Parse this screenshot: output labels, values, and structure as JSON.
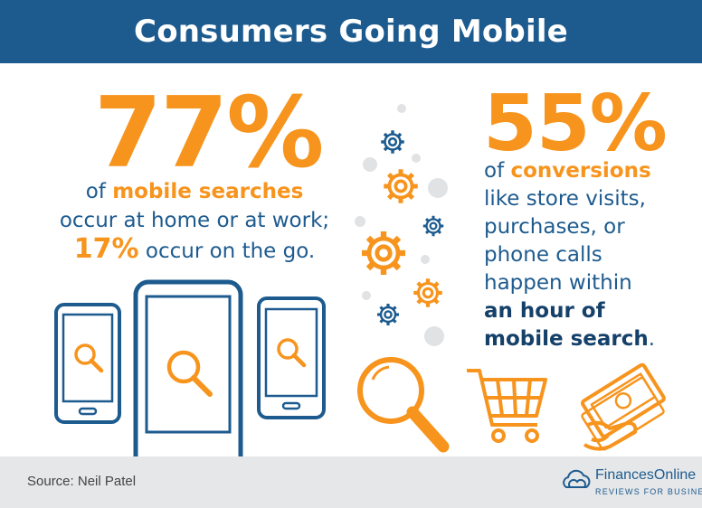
{
  "header": {
    "title": "Consumers Going Mobile"
  },
  "left_stat": {
    "percent": "77%",
    "line1_prefix": "of ",
    "line1_highlight": "mobile searches",
    "line2": "occur at home or at work;",
    "line3_highlight": "17%",
    "line3_rest": " occur on the go."
  },
  "right_stat": {
    "percent": "55%",
    "line1_prefix": "of ",
    "line1_highlight": "conversions",
    "line2": "like store visits,",
    "line3": "purchases, or",
    "line4": "phone calls",
    "line5": "happen within",
    "line6_bold": "an hour of",
    "line7_bold": "mobile search",
    "line7_end": "."
  },
  "footer": {
    "source": "Source: Neil Patel",
    "brand_name": "FinancesOnline",
    "brand_tagline": "REVIEWS FOR BUSINESS"
  },
  "colors": {
    "primary_blue": "#1d5b8f",
    "accent_orange": "#f7941d",
    "footer_gray": "#e6e7e8",
    "dot_gray": "#e1e2e4"
  },
  "icons": [
    "smartphone-icon",
    "magnifier-icon",
    "gear-icon",
    "shopping-cart-icon",
    "money-hand-icon",
    "cloud-logo-icon"
  ]
}
